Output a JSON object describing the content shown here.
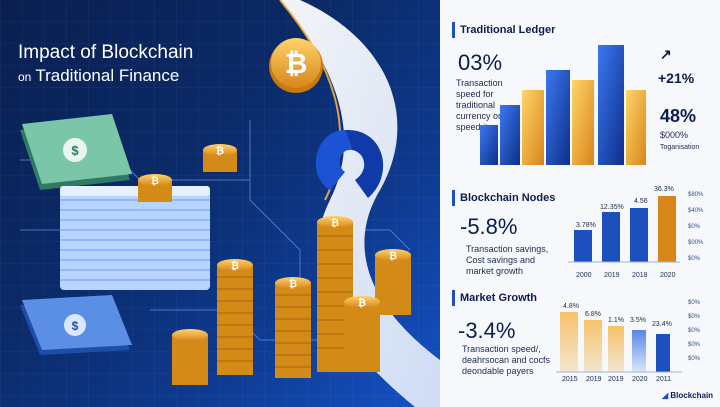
{
  "header": {
    "title_line1": "Impact of Blockchain",
    "title_small": "on",
    "title_line2": "Traditional Finance"
  },
  "sections": {
    "ledger": {
      "heading": "Traditional Ledger",
      "big_value": "03%",
      "caption": "Transaction speed for traditional currency or speed its",
      "side_value_1": "+21%",
      "side_value_2": "48%",
      "side_caption_1": "$000%",
      "side_caption_2": "Toganisation"
    },
    "nodes": {
      "heading": "Blockchain Nodes",
      "big_value": "-5.8%",
      "caption": "Transaction savings, Cost savings and market growth",
      "bar_labels": [
        "3.78%",
        "12.35%",
        "4.56",
        "36.3%"
      ],
      "years": [
        "2000",
        "2019",
        "2018",
        "2020"
      ],
      "y_ticks": [
        "$80%",
        "$40%",
        "$0%",
        "$00%",
        "$0%"
      ]
    },
    "market": {
      "heading": "Market Growth",
      "big_value": "-3.4%",
      "caption": "Transaction speed/, deahrsocan and cocfs deondable payers",
      "bar_labels": [
        "4.8%",
        "6.8%",
        "1.1%",
        "3.5%",
        "23.4%"
      ],
      "years": [
        "2015",
        "2019",
        "2019",
        "2020",
        "2011"
      ],
      "y_ticks": [
        "$0%",
        "$0%",
        "$0%",
        "$0%",
        "$0%"
      ]
    }
  },
  "footer": {
    "logo_text": "Blockchain"
  },
  "colors": {
    "navy": "#0b1d4a",
    "blue": "#1d4fbf",
    "gold": "#f0a52a"
  }
}
